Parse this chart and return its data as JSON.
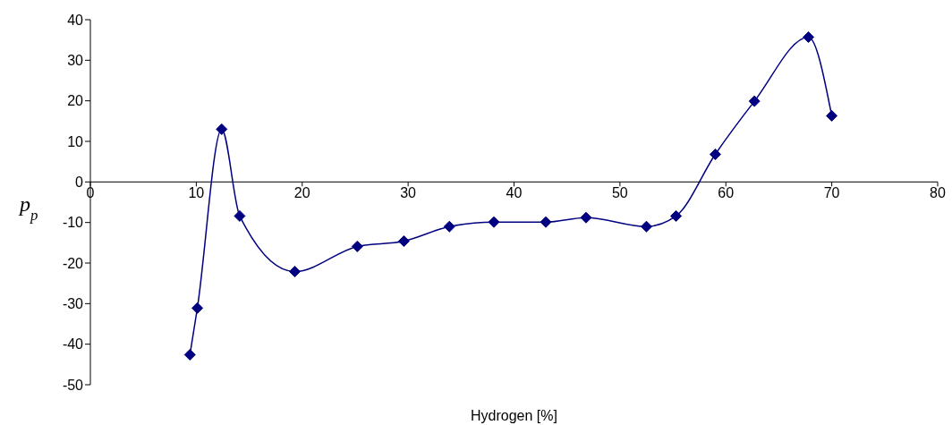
{
  "chart_data": {
    "type": "line",
    "xlabel": "Hydrogen [%]",
    "ylabel": "p$_{p}$",
    "series": [
      {
        "color": "#000080",
        "x": [
          9.4,
          10.1,
          12.4,
          14.1,
          19.3,
          25.2,
          29.6,
          33.9,
          38.1,
          43.0,
          46.8,
          52.5,
          55.3,
          59.0,
          62.7,
          67.8,
          70.0
        ],
        "values": [
          -42.6,
          -31.1,
          13.0,
          -8.4,
          -22.1,
          -15.9,
          -14.6,
          -11.0,
          -9.9,
          -9.9,
          -8.8,
          -11.0,
          -8.4,
          6.8,
          19.9,
          35.7,
          16.3
        ]
      }
    ],
    "xlim": [
      0,
      80
    ],
    "xticks": [
      0,
      10,
      20,
      30,
      40,
      50,
      60,
      70,
      80
    ],
    "ylim": [
      -50,
      40
    ],
    "yticks": [
      -50,
      -40,
      -30,
      -20,
      -10,
      0,
      10,
      20,
      30,
      40
    ],
    "grid": false,
    "legend": false,
    "marker": "diamond",
    "line_style": "solid"
  }
}
